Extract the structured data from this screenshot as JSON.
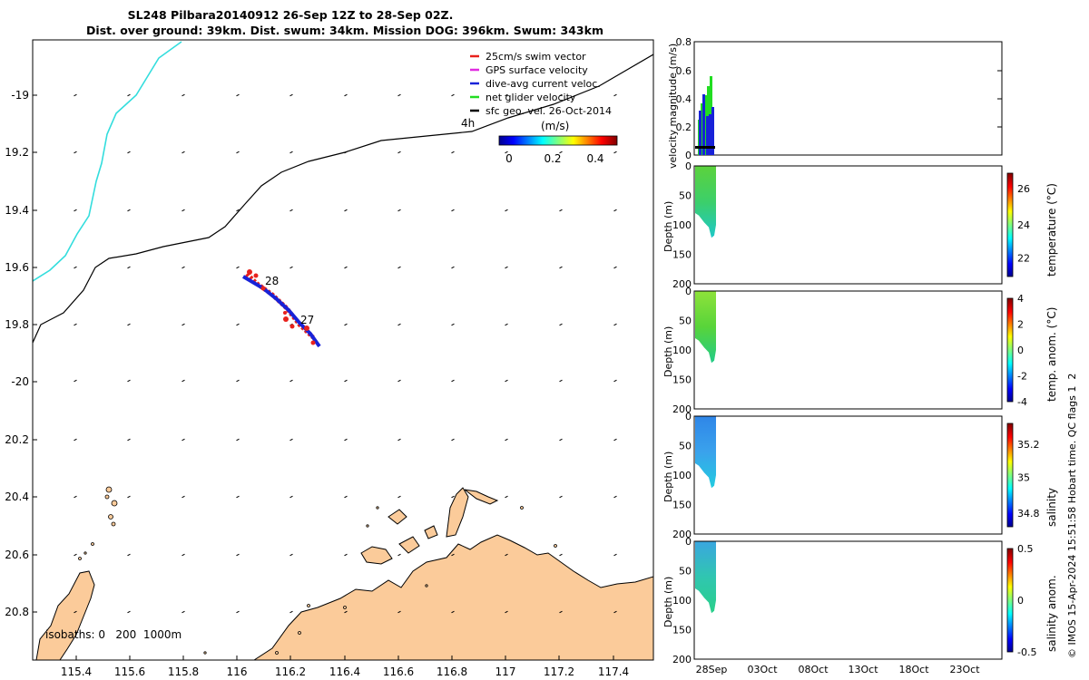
{
  "header": {
    "title_line1": "SL248 Pilbara20140912 26-Sep 12Z to 28-Sep 02Z.",
    "title_line2": "Dist. over ground: 39km. Dist. swum: 34km. Mission DOG: 396km. Swum: 343km"
  },
  "map": {
    "lon_ticks": [
      "115.4",
      "115.6",
      "115.8",
      "116",
      "116.2",
      "116.4",
      "116.6",
      "116.8",
      "117",
      "117.2",
      "117.4"
    ],
    "lat_ticks": [
      "-19",
      "19.2",
      "19.4",
      "19.6",
      "19.8",
      "-20",
      "20.2",
      "20.4",
      "20.6",
      "20.8"
    ],
    "legend": [
      {
        "label": "25cm/s swim vector",
        "color": "#e8211c"
      },
      {
        "label": "GPS surface velocity",
        "color": "#e02ce0"
      },
      {
        "label": "dive-avg current veloc.",
        "color": "#1822d8"
      },
      {
        "label": "net glider velocity",
        "color": "#22dd22"
      },
      {
        "label": "sfc geo. vel. 26-Oct-2014",
        "color": "#000000"
      }
    ],
    "colorbar": {
      "title": "(m/s)",
      "ticks": [
        "0",
        "0.2",
        "0.4"
      ]
    },
    "track_labels": {
      "day28": "28",
      "day27": "27",
      "hour_label": "4h"
    },
    "isobaths": "isobaths: 0   200  1000m",
    "colors": {
      "land": "#fbcb9a",
      "isobath_0": "#33dddd",
      "isobath_200": "#000000"
    }
  },
  "velocity_panel": {
    "ylabel": "velocity magnitude (m/s)",
    "yticks": [
      "0",
      "0.2",
      "0.4",
      "0.6",
      "0.8"
    ]
  },
  "depth_panels": [
    {
      "ylabel": "Depth (m)",
      "cblabel": "temperature (°C)",
      "cbticks": [
        "26",
        "24",
        "22"
      ]
    },
    {
      "ylabel": "Depth (m)",
      "cblabel": "temp. anom. (°C)",
      "cbticks": [
        "4",
        "2",
        "0",
        "-2",
        "-4"
      ]
    },
    {
      "ylabel": "Depth (m)",
      "cblabel": "salinity",
      "cbticks": [
        "35.2",
        "35",
        "34.8"
      ]
    },
    {
      "ylabel": "Depth (m)",
      "cblabel": "salinity anom.",
      "cbticks": [
        "0.5",
        "0",
        "-0.5"
      ]
    }
  ],
  "depth_ticks": [
    "0",
    "50",
    "100",
    "150",
    "200"
  ],
  "time_ticks": [
    "28Sep",
    "03Oct",
    "08Oct",
    "13Oct",
    "18Oct",
    "23Oct"
  ],
  "footer": {
    "credit": "© IMOS 15-Apr-2024 15:51:58 Hobart time. QC flags 1  2"
  }
}
